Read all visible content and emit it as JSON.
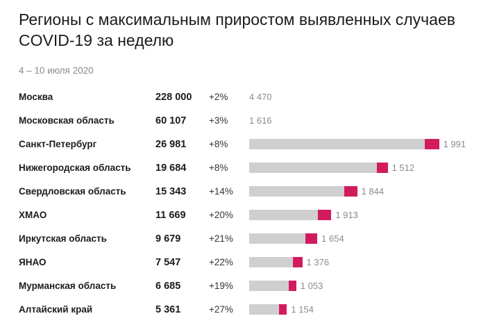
{
  "title": "Регионы с максимальным приростом выявленных случаев COVID-19 за неделю",
  "subtitle": "4 – 10 июля 2020",
  "colors": {
    "base": "#cfcfcf",
    "new": "#d21b5f",
    "muted": "#8a8a8a"
  },
  "chart_data": {
    "type": "bar",
    "title": "Регионы с максимальным приростом выявленных случаев COVID-19 за неделю",
    "subtitle": "4 – 10 июля 2020",
    "categories": [
      "Москва",
      "Московская область",
      "Санкт-Петербург",
      "Нижегородская область",
      "Свердловская область",
      "ХМАО",
      "Иркутская область",
      "ЯНАО",
      "Мурманская область",
      "Алтайский край"
    ],
    "totals_label": [
      "228 000",
      "60 107",
      "26 981",
      "19 684",
      "15 343",
      "11 669",
      "9 679",
      "7 547",
      "6 685",
      "5 361"
    ],
    "growth_label": [
      "+2%",
      "+3%",
      "+8%",
      "+8%",
      "+14%",
      "+20%",
      "+21%",
      "+22%",
      "+19%",
      "+27%"
    ],
    "new_cases_label": [
      "4 470",
      "1 616",
      "1 991",
      "1 512",
      "1 844",
      "1 913",
      "1 654",
      "1 376",
      "1 053",
      "1 154"
    ],
    "series": [
      {
        "name": "",
        "values": [
          228000,
          60107,
          26981,
          19684,
          15343,
          11669,
          9679,
          7547,
          6685,
          5361
        ]
      },
      {
        "name": "",
        "values": [
          4470,
          1616,
          1991,
          1512,
          1844,
          1913,
          1654,
          1376,
          1053,
          1154
        ]
      }
    ],
    "bars_shown": [
      false,
      false,
      true,
      true,
      true,
      true,
      true,
      true,
      true,
      true
    ],
    "stacked": true,
    "grid": false
  }
}
